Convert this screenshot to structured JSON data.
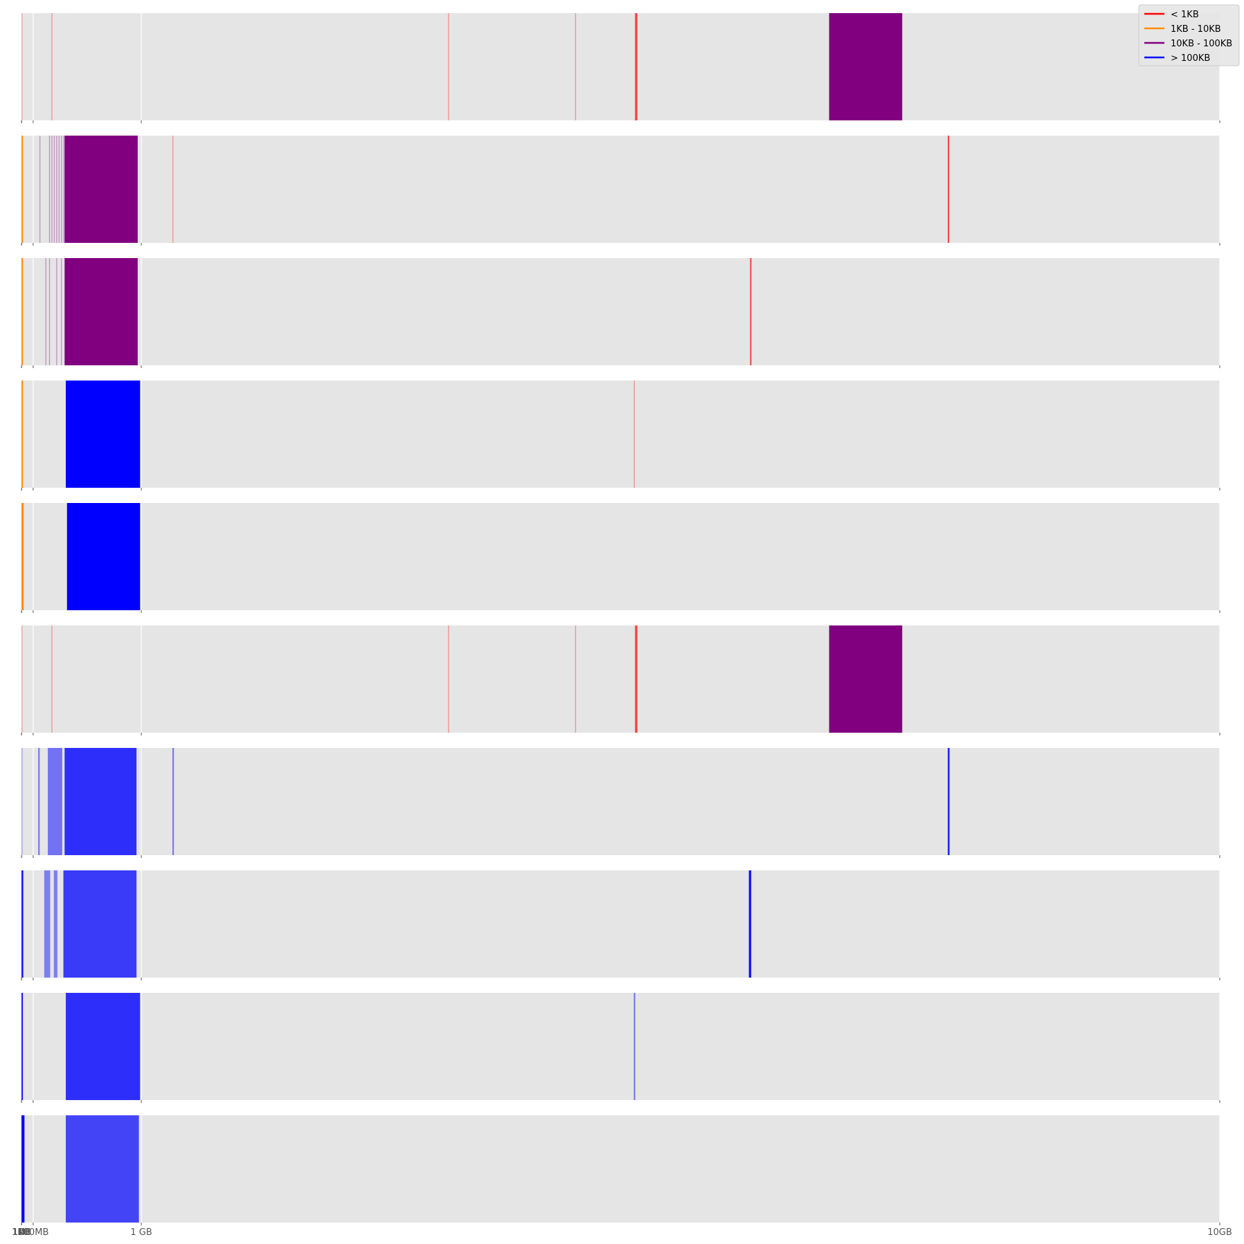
{
  "chart_data": {
    "type": "bar",
    "subtype": "memory-address-strips",
    "x_scale": "linear (bytes)",
    "xlim": [
      0,
      10737418240
    ],
    "x_ticks": [
      {
        "value": 0,
        "label": "0"
      },
      {
        "value": 1024,
        "label": "1KB"
      },
      {
        "value": 1048576,
        "label": "1MB"
      },
      {
        "value": 104857600,
        "label": "100MB"
      },
      {
        "value": 1073741824,
        "label": "1 GB"
      },
      {
        "value": 10737418240,
        "label": "10GB"
      }
    ],
    "grid": true,
    "legend": {
      "position": "top-right",
      "entries": [
        {
          "label": "< 1KB",
          "color": "#ff0000"
        },
        {
          "label": "1KB - 10KB",
          "color": "#ff8c00"
        },
        {
          "label": "10KB - 100KB",
          "color": "#800080"
        },
        {
          "label": "> 100KB",
          "color": "#0000ff"
        }
      ]
    },
    "background_color": "#e5e5e5",
    "strips": [
      {
        "index": 1,
        "marks": [
          {
            "x_gb": 0.0,
            "width_gb": 0.004,
            "color": "#ff0000",
            "opacity": 0.35
          },
          {
            "x_gb": 0.25,
            "width_gb": 0.004,
            "color": "#ff0000",
            "opacity": 0.35
          },
          {
            "x_gb": 3.56,
            "width_gb": 0.004,
            "color": "#ff0000",
            "opacity": 0.35
          },
          {
            "x_gb": 4.62,
            "width_gb": 0.004,
            "color": "#ff0000",
            "opacity": 0.35
          },
          {
            "x_gb": 5.12,
            "width_gb": 0.02,
            "color": "#ff0000",
            "opacity": 0.7
          },
          {
            "x_gb": 6.74,
            "width_gb": 0.61,
            "color": "#800080",
            "opacity": 1.0
          }
        ]
      },
      {
        "index": 2,
        "marks": [
          {
            "x_gb": 0.0,
            "width_gb": 0.012,
            "color": "#ff8c00",
            "opacity": 1.0
          },
          {
            "x_gb": 0.15,
            "width_gb": 0.006,
            "color": "#800080",
            "opacity": 0.35
          },
          {
            "x_gb": 0.23,
            "width_gb": 0.006,
            "color": "#800080",
            "opacity": 0.35
          },
          {
            "x_gb": 0.25,
            "width_gb": 0.006,
            "color": "#800080",
            "opacity": 0.35
          },
          {
            "x_gb": 0.27,
            "width_gb": 0.006,
            "color": "#800080",
            "opacity": 0.35
          },
          {
            "x_gb": 0.29,
            "width_gb": 0.006,
            "color": "#800080",
            "opacity": 0.35
          },
          {
            "x_gb": 0.31,
            "width_gb": 0.006,
            "color": "#800080",
            "opacity": 0.35
          },
          {
            "x_gb": 0.33,
            "width_gb": 0.006,
            "color": "#800080",
            "opacity": 0.35
          },
          {
            "x_gb": 0.35,
            "width_gb": 0.006,
            "color": "#800080",
            "opacity": 0.35
          },
          {
            "x_gb": 0.36,
            "width_gb": 0.61,
            "color": "#800080",
            "opacity": 1.0
          },
          {
            "x_gb": 1.26,
            "width_gb": 0.004,
            "color": "#ff0000",
            "opacity": 0.35
          },
          {
            "x_gb": 7.73,
            "width_gb": 0.012,
            "color": "#ff0000",
            "opacity": 0.7
          }
        ]
      },
      {
        "index": 3,
        "marks": [
          {
            "x_gb": 0.0,
            "width_gb": 0.012,
            "color": "#ff8c00",
            "opacity": 1.0
          },
          {
            "x_gb": 0.2,
            "width_gb": 0.006,
            "color": "#800080",
            "opacity": 0.35
          },
          {
            "x_gb": 0.23,
            "width_gb": 0.006,
            "color": "#800080",
            "opacity": 0.35
          },
          {
            "x_gb": 0.29,
            "width_gb": 0.006,
            "color": "#800080",
            "opacity": 0.35
          },
          {
            "x_gb": 0.33,
            "width_gb": 0.006,
            "color": "#800080",
            "opacity": 0.35
          },
          {
            "x_gb": 0.36,
            "width_gb": 0.61,
            "color": "#800080",
            "opacity": 1.0
          },
          {
            "x_gb": 6.08,
            "width_gb": 0.012,
            "color": "#ff0000",
            "opacity": 0.7
          }
        ]
      },
      {
        "index": 4,
        "marks": [
          {
            "x_gb": 0.0,
            "width_gb": 0.012,
            "color": "#ff8c00",
            "opacity": 1.0
          },
          {
            "x_gb": 0.37,
            "width_gb": 0.62,
            "color": "#0000ff",
            "opacity": 1.0
          },
          {
            "x_gb": 5.11,
            "width_gb": 0.006,
            "color": "#ff0000",
            "opacity": 0.35
          }
        ]
      },
      {
        "index": 5,
        "marks": [
          {
            "x_gb": 0.0,
            "width_gb": 0.018,
            "color": "#ff8c00",
            "opacity": 1.0
          },
          {
            "x_gb": 0.38,
            "width_gb": 0.61,
            "color": "#0000ff",
            "opacity": 1.0
          }
        ]
      },
      {
        "index": 6,
        "marks": [
          {
            "x_gb": 0.0,
            "width_gb": 0.004,
            "color": "#ff0000",
            "opacity": 0.35
          },
          {
            "x_gb": 0.25,
            "width_gb": 0.004,
            "color": "#ff0000",
            "opacity": 0.35
          },
          {
            "x_gb": 3.56,
            "width_gb": 0.004,
            "color": "#ff0000",
            "opacity": 0.35
          },
          {
            "x_gb": 4.62,
            "width_gb": 0.004,
            "color": "#ff0000",
            "opacity": 0.35
          },
          {
            "x_gb": 5.12,
            "width_gb": 0.02,
            "color": "#ff0000",
            "opacity": 0.7
          },
          {
            "x_gb": 6.74,
            "width_gb": 0.61,
            "color": "#800080",
            "opacity": 1.0
          }
        ]
      },
      {
        "index": 7,
        "marks": [
          {
            "x_gb": 0.0,
            "width_gb": 0.006,
            "color": "#0000ff",
            "opacity": 0.35
          },
          {
            "x_gb": 0.14,
            "width_gb": 0.012,
            "color": "#0000ff",
            "opacity": 0.5
          },
          {
            "x_gb": 0.22,
            "width_gb": 0.12,
            "color": "#0000ff",
            "opacity": 0.5
          },
          {
            "x_gb": 0.36,
            "width_gb": 0.6,
            "color": "#0000ff",
            "opacity": 0.8
          },
          {
            "x_gb": 1.26,
            "width_gb": 0.012,
            "color": "#0000ff",
            "opacity": 0.5
          },
          {
            "x_gb": 7.73,
            "width_gb": 0.015,
            "color": "#0000ff",
            "opacity": 0.85
          }
        ]
      },
      {
        "index": 8,
        "marks": [
          {
            "x_gb": 0.0,
            "width_gb": 0.015,
            "color": "#0000ff",
            "opacity": 0.9
          },
          {
            "x_gb": 0.19,
            "width_gb": 0.05,
            "color": "#0000ff",
            "opacity": 0.45
          },
          {
            "x_gb": 0.27,
            "width_gb": 0.03,
            "color": "#0000ff",
            "opacity": 0.45
          },
          {
            "x_gb": 0.35,
            "width_gb": 0.61,
            "color": "#0000ff",
            "opacity": 0.75
          },
          {
            "x_gb": 6.07,
            "width_gb": 0.02,
            "color": "#0000ff",
            "opacity": 0.9
          }
        ]
      },
      {
        "index": 9,
        "marks": [
          {
            "x_gb": 0.0,
            "width_gb": 0.012,
            "color": "#0000ff",
            "opacity": 0.9
          },
          {
            "x_gb": 0.37,
            "width_gb": 0.62,
            "color": "#0000ff",
            "opacity": 0.8
          },
          {
            "x_gb": 5.11,
            "width_gb": 0.012,
            "color": "#0000ff",
            "opacity": 0.5
          }
        ]
      },
      {
        "index": 10,
        "marks": [
          {
            "x_gb": 0.0,
            "width_gb": 0.025,
            "color": "#0000ff",
            "opacity": 1.0
          },
          {
            "x_gb": 0.37,
            "width_gb": 0.61,
            "color": "#0000ff",
            "opacity": 0.7
          }
        ]
      }
    ]
  }
}
